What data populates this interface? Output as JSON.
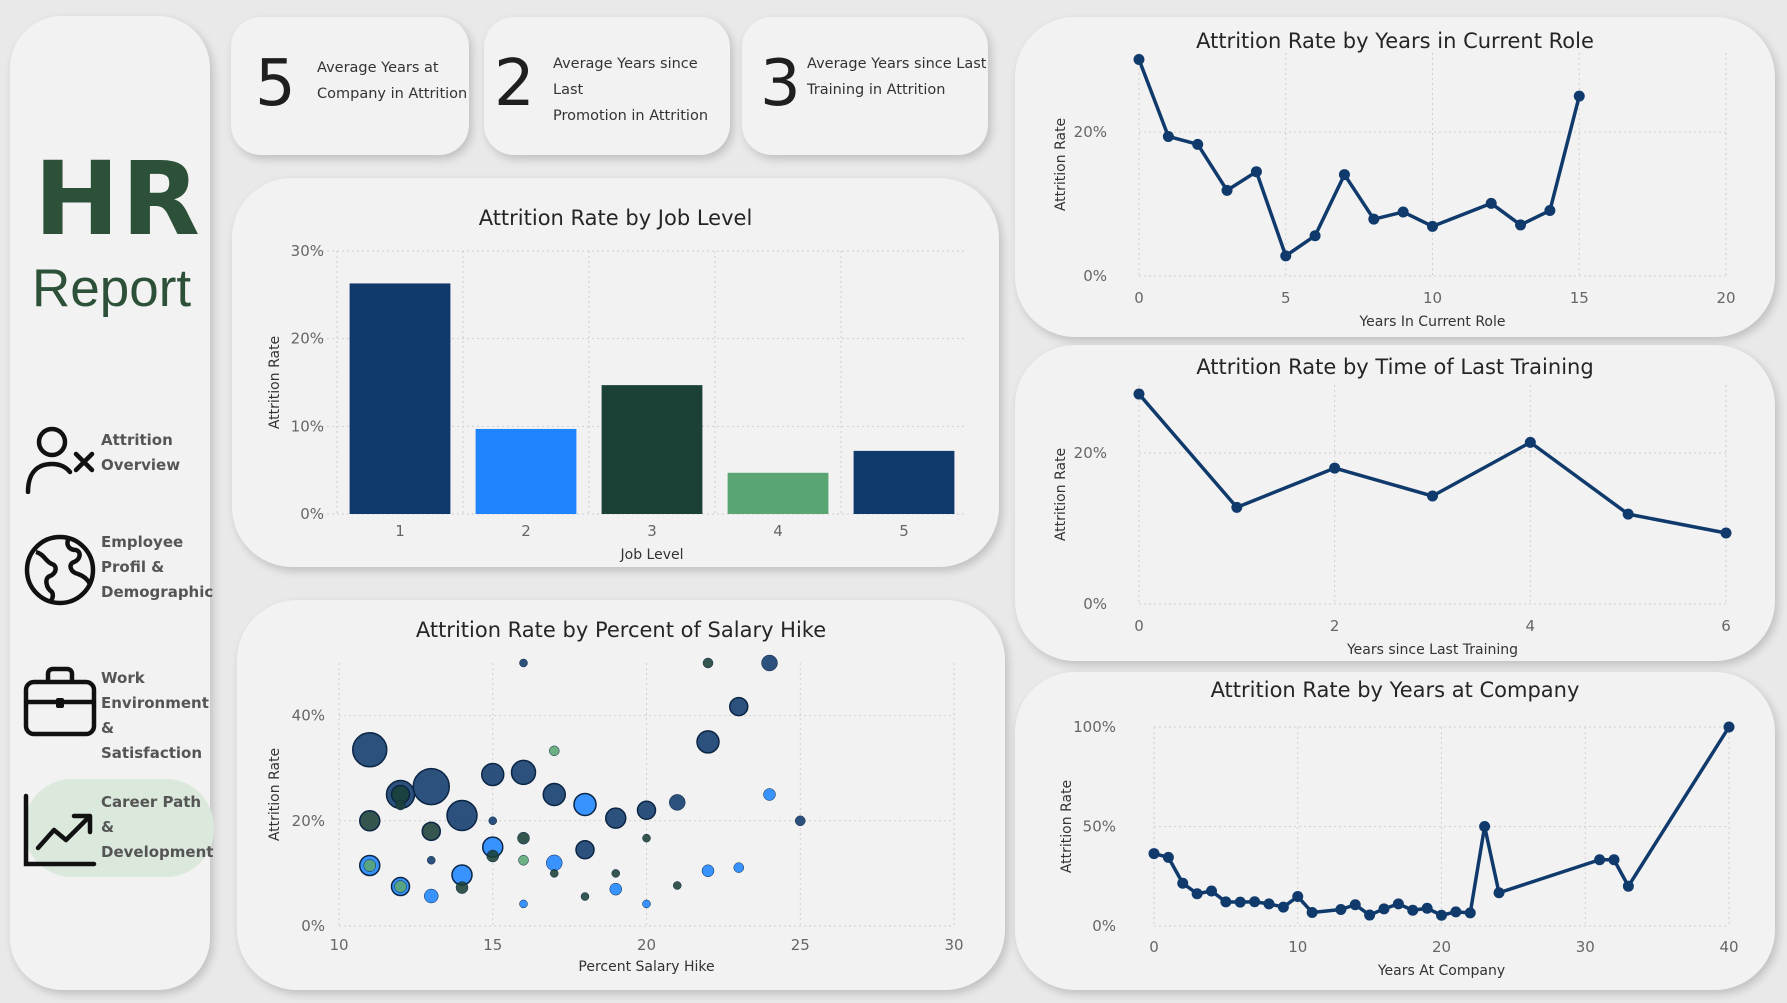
{
  "sidebar": {
    "title": "HR",
    "subtitle": "Report",
    "items": [
      {
        "icon": "person-remove-icon",
        "label_lines": [
          "Attrition",
          "Overview"
        ]
      },
      {
        "icon": "globe-icon",
        "label_lines": [
          "Employee",
          "Profil &",
          "Demographic"
        ]
      },
      {
        "icon": "briefcase-icon",
        "label_lines": [
          "Work",
          "Environment &",
          "Satisfaction"
        ]
      },
      {
        "icon": "trending-up-icon",
        "label_lines": [
          "Career Path &",
          "Development"
        ],
        "active": true
      }
    ]
  },
  "kpis": [
    {
      "value": "5",
      "label_lines": [
        "Average Years at",
        "Company in Attrition"
      ]
    },
    {
      "value": "2",
      "label_lines": [
        "Average Years since Last",
        "Promotion in Attrition"
      ]
    },
    {
      "value": "3",
      "label_lines": [
        "Average Years since Last",
        "Training in Attrition"
      ]
    }
  ],
  "colors": {
    "navy": "#0f3a6b",
    "blue": "#1f85ff",
    "dark_green": "#1a4038",
    "light_green": "#5aa673",
    "title_green": "#2d5138",
    "card_bg": "#f2f2f2",
    "page_bg": "#e9e9e9"
  },
  "chart_data": [
    {
      "id": "job_level",
      "type": "bar",
      "title": "Attrition Rate by Job Level",
      "xlabel": "Job Level",
      "ylabel": "Attrition Rate",
      "categories": [
        "1",
        "2",
        "3",
        "4",
        "5"
      ],
      "values": [
        26.3,
        9.7,
        14.7,
        4.7,
        7.2
      ],
      "bar_colors": [
        "#0f3a6b",
        "#1f85ff",
        "#1a4038",
        "#5aa673",
        "#0f3a6b"
      ],
      "ylim": [
        0,
        30
      ],
      "yticks": [
        0,
        10,
        20,
        30
      ],
      "ytick_labels": [
        "0%",
        "10%",
        "20%",
        "30%"
      ],
      "grid": true
    },
    {
      "id": "salary_hike",
      "type": "scatter",
      "title": "Attrition Rate by Percent of Salary Hike",
      "xlabel": "Percent Salary Hike",
      "ylabel": "Attrition Rate",
      "xlim": [
        10,
        30
      ],
      "xticks": [
        10,
        15,
        20,
        25,
        30
      ],
      "ylim": [
        0,
        50
      ],
      "yticks": [
        0,
        20,
        40
      ],
      "ytick_labels": [
        "0%",
        "20%",
        "40%"
      ],
      "grid": true,
      "points": [
        {
          "x": 11,
          "y": 33.5,
          "r": 17,
          "c": "#0f3a6b"
        },
        {
          "x": 11,
          "y": 20.0,
          "r": 10,
          "c": "#1a4038"
        },
        {
          "x": 11,
          "y": 11.5,
          "r": 10,
          "c": "#1f85ff"
        },
        {
          "x": 11,
          "y": 11.5,
          "r": 6,
          "c": "#5aa673"
        },
        {
          "x": 12,
          "y": 25.0,
          "r": 14,
          "c": "#0f3a6b"
        },
        {
          "x": 12,
          "y": 25.0,
          "r": 9,
          "c": "#1a4038"
        },
        {
          "x": 12,
          "y": 23.0,
          "r": 5,
          "c": "#1a4038"
        },
        {
          "x": 12,
          "y": 7.5,
          "r": 9,
          "c": "#1f85ff"
        },
        {
          "x": 12,
          "y": 7.5,
          "r": 6,
          "c": "#5aa673"
        },
        {
          "x": 13,
          "y": 26.5,
          "r": 18,
          "c": "#0f3a6b"
        },
        {
          "x": 13,
          "y": 18.0,
          "r": 9,
          "c": "#1a4038"
        },
        {
          "x": 13,
          "y": 12.5,
          "r": 4,
          "c": "#0f3a6b"
        },
        {
          "x": 13,
          "y": 5.7,
          "r": 7,
          "c": "#1f85ff"
        },
        {
          "x": 14,
          "y": 21.0,
          "r": 15,
          "c": "#0f3a6b"
        },
        {
          "x": 14,
          "y": 9.7,
          "r": 10,
          "c": "#1f85ff"
        },
        {
          "x": 14,
          "y": 7.3,
          "r": 6,
          "c": "#1a4038"
        },
        {
          "x": 15,
          "y": 28.8,
          "r": 11,
          "c": "#0f3a6b"
        },
        {
          "x": 15,
          "y": 20.0,
          "r": 4,
          "c": "#0f3a6b"
        },
        {
          "x": 15,
          "y": 15.0,
          "r": 10,
          "c": "#1f85ff"
        },
        {
          "x": 15,
          "y": 13.3,
          "r": 6,
          "c": "#1a4038"
        },
        {
          "x": 16,
          "y": 50.0,
          "r": 4,
          "c": "#0f3a6b"
        },
        {
          "x": 16,
          "y": 29.2,
          "r": 12,
          "c": "#0f3a6b"
        },
        {
          "x": 16,
          "y": 16.7,
          "r": 6,
          "c": "#1a4038"
        },
        {
          "x": 16,
          "y": 12.5,
          "r": 5,
          "c": "#5aa673"
        },
        {
          "x": 16,
          "y": 4.2,
          "r": 4,
          "c": "#1f85ff"
        },
        {
          "x": 17,
          "y": 33.3,
          "r": 5,
          "c": "#5aa673"
        },
        {
          "x": 17,
          "y": 25.0,
          "r": 11,
          "c": "#0f3a6b"
        },
        {
          "x": 17,
          "y": 12.0,
          "r": 8,
          "c": "#1f85ff"
        },
        {
          "x": 17,
          "y": 10.0,
          "r": 4,
          "c": "#1a4038"
        },
        {
          "x": 18,
          "y": 23.1,
          "r": 11,
          "c": "#1f85ff"
        },
        {
          "x": 18,
          "y": 14.5,
          "r": 9,
          "c": "#0f3a6b"
        },
        {
          "x": 18,
          "y": 5.6,
          "r": 4,
          "c": "#1a4038"
        },
        {
          "x": 19,
          "y": 20.5,
          "r": 10,
          "c": "#0f3a6b"
        },
        {
          "x": 19,
          "y": 10.0,
          "r": 4,
          "c": "#1a4038"
        },
        {
          "x": 19,
          "y": 7.0,
          "r": 6,
          "c": "#1f85ff"
        },
        {
          "x": 20,
          "y": 22.0,
          "r": 9,
          "c": "#0f3a6b"
        },
        {
          "x": 20,
          "y": 16.7,
          "r": 4,
          "c": "#1a4038"
        },
        {
          "x": 20,
          "y": 4.2,
          "r": 4,
          "c": "#1f85ff"
        },
        {
          "x": 21,
          "y": 23.5,
          "r": 8,
          "c": "#0f3a6b"
        },
        {
          "x": 21,
          "y": 7.7,
          "r": 4,
          "c": "#1a4038"
        },
        {
          "x": 22,
          "y": 50.0,
          "r": 5,
          "c": "#1a4038"
        },
        {
          "x": 22,
          "y": 35.0,
          "r": 11,
          "c": "#0f3a6b"
        },
        {
          "x": 22,
          "y": 10.5,
          "r": 6,
          "c": "#1f85ff"
        },
        {
          "x": 23,
          "y": 41.7,
          "r": 9,
          "c": "#0f3a6b"
        },
        {
          "x": 23,
          "y": 11.1,
          "r": 5,
          "c": "#1f85ff"
        },
        {
          "x": 24,
          "y": 50.0,
          "r": 8,
          "c": "#0f3a6b"
        },
        {
          "x": 24,
          "y": 25.0,
          "r": 6,
          "c": "#1f85ff"
        },
        {
          "x": 25,
          "y": 20.0,
          "r": 5,
          "c": "#0f3a6b"
        }
      ]
    },
    {
      "id": "years_current_role",
      "type": "line",
      "title": "Attrition Rate by Years in Current Role",
      "xlabel": "Years In Current Role",
      "ylabel": "Attrition Rate",
      "xlim": [
        0,
        20
      ],
      "xticks": [
        0,
        5,
        10,
        15,
        20
      ],
      "ylim": [
        0,
        31
      ],
      "yticks": [
        0,
        20
      ],
      "ytick_labels": [
        "0%",
        "20%"
      ],
      "grid": true,
      "x": [
        0,
        1,
        2,
        3,
        4,
        5,
        6,
        7,
        8,
        9,
        10,
        12,
        13,
        14,
        15
      ],
      "y": [
        30.1,
        19.4,
        18.3,
        11.9,
        14.5,
        2.8,
        5.6,
        14.1,
        7.9,
        8.9,
        6.9,
        10.1,
        7.1,
        9.1,
        25.0
      ]
    },
    {
      "id": "last_training",
      "type": "line",
      "title": "Attrition Rate by Time of Last Training",
      "xlabel": "Years since Last Training",
      "ylabel": "Attrition Rate",
      "xlim": [
        0,
        6
      ],
      "xticks": [
        0,
        2,
        4,
        6
      ],
      "ylim": [
        0,
        29
      ],
      "yticks": [
        0,
        20
      ],
      "ytick_labels": [
        "0%",
        "20%"
      ],
      "grid": true,
      "x": [
        0,
        1,
        2,
        3,
        4,
        5,
        6
      ],
      "y": [
        27.8,
        12.8,
        18.0,
        14.3,
        21.4,
        11.9,
        9.4
      ]
    },
    {
      "id": "years_at_company",
      "type": "line",
      "title": "Attrition Rate by Years at Company",
      "xlabel": "Years At Company",
      "ylabel": "Attrition Rate",
      "xlim": [
        0,
        40
      ],
      "xticks": [
        0,
        10,
        20,
        30,
        40
      ],
      "ylim": [
        0,
        100
      ],
      "yticks": [
        0,
        50,
        100
      ],
      "ytick_labels": [
        "0%",
        "50%",
        "100%"
      ],
      "grid": true,
      "x": [
        0,
        1,
        2,
        3,
        4,
        5,
        6,
        7,
        8,
        9,
        10,
        11,
        13,
        14,
        15,
        16,
        17,
        18,
        19,
        20,
        21,
        22,
        23,
        24,
        31,
        32,
        33,
        40
      ],
      "y": [
        36.4,
        34.5,
        21.5,
        16.2,
        17.6,
        12.1,
        12.0,
        12.2,
        11.1,
        9.5,
        14.8,
        6.8,
        8.3,
        10.7,
        5.5,
        8.6,
        11.1,
        7.9,
        8.9,
        5.4,
        7.1,
        6.6,
        50.0,
        16.7,
        33.3,
        33.3,
        20.0,
        100.0
      ]
    }
  ]
}
